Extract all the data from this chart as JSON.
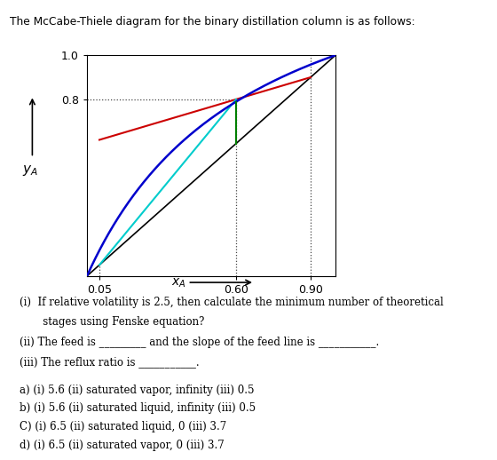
{
  "title": "The McCabe-Thiele diagram for the binary distillation column is as follows:",
  "x_ticks": [
    0.05,
    0.6,
    0.9
  ],
  "y_ticks": [
    0.8,
    1
  ],
  "xD": 0.9,
  "xF": 0.6,
  "xB": 0.05,
  "yD": 1.0,
  "yF": 0.8,
  "alpha": 2.5,
  "ylabel": "$y_A$",
  "xlabel": "$x_A$",
  "reflux_ratio": 0.5,
  "background_color": "#ffffff",
  "eq_color": "#0000cc",
  "diagonal_color": "#000000",
  "rect_color": "#cc0000",
  "strip_color": "#00cccc",
  "green_line_color": "#008000",
  "dotted_color": "#444444",
  "questions": [
    "(i)  If relative volatility is 2.5, then calculate the minimum number of theoretical",
    "       stages using Fenske equation?",
    "(ii) The feed is _________ and the slope of the feed line is ___________.",
    "(iii) The reflux ratio is ___________."
  ],
  "answers": [
    "a) (i) 5.6 (ii) saturated vapor, infinity (iii) 0.5",
    "b) (i) 5.6 (ii) saturated liquid, infinity (iii) 0.5",
    "C) (i) 6.5 (ii) saturated liquid, 0 (iii) 3.7",
    "d) (i) 6.5 (ii) saturated vapor, 0 (iii) 3.7"
  ]
}
